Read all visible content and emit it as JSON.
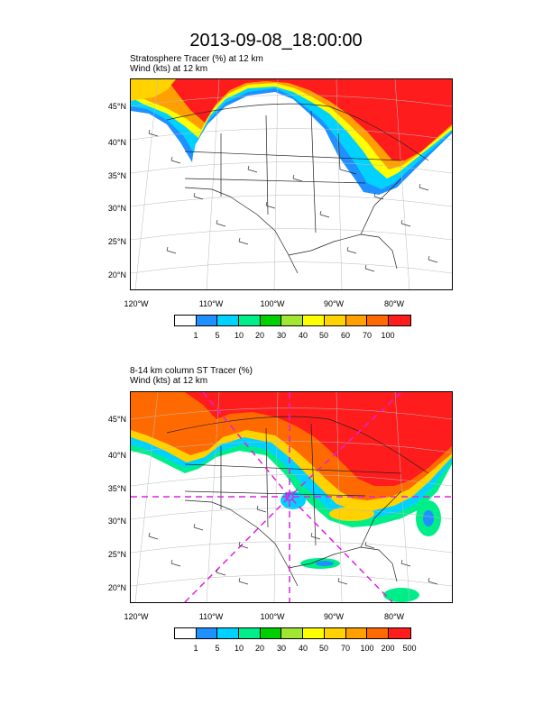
{
  "title": "2013-09-08_18:00:00",
  "panels": [
    {
      "line1": "Stratosphere Tracer   (%)     at   12 km",
      "line2": "Wind   (kts)     at   12 km",
      "lat_labels": [
        "45°N",
        "40°N",
        "35°N",
        "30°N",
        "25°N",
        "20°N"
      ],
      "lon_labels": [
        "120°W",
        "110°W",
        "100°W",
        "90°W",
        "80°W"
      ],
      "colorbar_labels": [
        "1",
        "5",
        "10",
        "20",
        "30",
        "40",
        "50",
        "60",
        "70",
        "100"
      ]
    },
    {
      "line1": "8-14 km column ST Tracer   (%)",
      "line2": "Wind   (kts)     at   12 km",
      "lat_labels": [
        "45°N",
        "40°N",
        "35°N",
        "30°N",
        "25°N",
        "20°N"
      ],
      "lon_labels": [
        "120°W",
        "110°W",
        "100°W",
        "90°W",
        "80°W"
      ],
      "colorbar_labels": [
        "1",
        "5",
        "10",
        "20",
        "30",
        "40",
        "50",
        "70",
        "100",
        "200",
        "500"
      ]
    }
  ],
  "colorbar_colors": [
    "#ffffff",
    "#1e90ff",
    "#00d2ff",
    "#00ee8a",
    "#00d000",
    "#a0e632",
    "#ffff00",
    "#ffd200",
    "#ffa000",
    "#ff6a00",
    "#ff1c1c"
  ],
  "overlay_line_color": "#e020e0"
}
